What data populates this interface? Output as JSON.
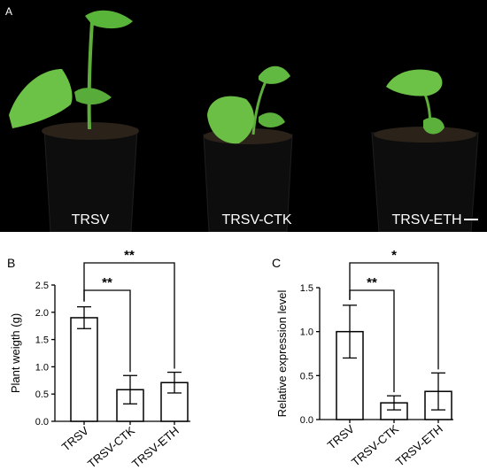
{
  "photo_panel": {
    "letter": "A",
    "labels": [
      "TRSV",
      "TRSV-CTK",
      "TRSV-ETH"
    ]
  },
  "chart_data": [
    {
      "type": "bar",
      "panel_letter": "B",
      "title": "",
      "xlabel": "",
      "ylabel": "Plant weigth (g)",
      "categories": [
        "TRSV",
        "TRSV-CTK",
        "TRSV-ETH"
      ],
      "values": [
        1.9,
        0.58,
        0.71
      ],
      "error": [
        0.2,
        0.26,
        0.19
      ],
      "ylim": [
        0,
        2.5
      ],
      "yticks": [
        "0.0",
        "0.5",
        "1.0",
        "1.5",
        "2.0",
        "2.5"
      ],
      "grid": false,
      "significance": [
        {
          "from": "TRSV",
          "to": "TRSV-CTK",
          "label": "**"
        },
        {
          "from": "TRSV",
          "to": "TRSV-ETH",
          "label": "**"
        }
      ]
    },
    {
      "type": "bar",
      "panel_letter": "C",
      "title": "",
      "xlabel": "",
      "ylabel": "Relative expression level",
      "categories": [
        "TRSV",
        "TRSV-CTK",
        "TRSV-ETH"
      ],
      "values": [
        1.0,
        0.19,
        0.32
      ],
      "error": [
        0.3,
        0.08,
        0.21
      ],
      "ylim": [
        0,
        1.5
      ],
      "yticks": [
        "0.0",
        "0.5",
        "1.0",
        "1.5"
      ],
      "grid": false,
      "significance": [
        {
          "from": "TRSV",
          "to": "TRSV-CTK",
          "label": "**"
        },
        {
          "from": "TRSV",
          "to": "TRSV-ETH",
          "label": "*"
        }
      ]
    }
  ]
}
